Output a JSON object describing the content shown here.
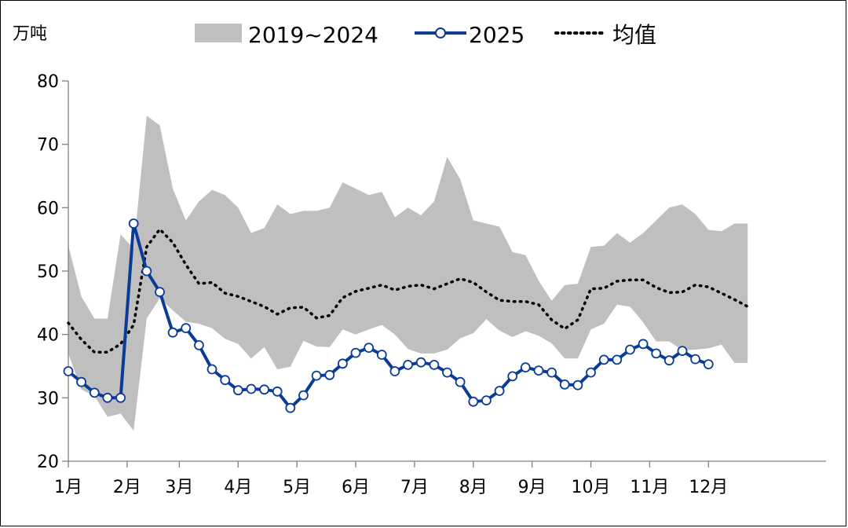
{
  "chart_data": {
    "type": "line",
    "unit": "万吨",
    "ylim": [
      20,
      80
    ],
    "yticks": [
      20,
      30,
      40,
      50,
      60,
      70,
      80
    ],
    "xlim": [
      0,
      58
    ],
    "month_ticks": [
      {
        "label": "1月",
        "x": 0
      },
      {
        "label": "2月",
        "x": 4.5
      },
      {
        "label": "3月",
        "x": 8.5
      },
      {
        "label": "4月",
        "x": 13
      },
      {
        "label": "5月",
        "x": 17.5
      },
      {
        "label": "6月",
        "x": 22
      },
      {
        "label": "7月",
        "x": 26.5
      },
      {
        "label": "8月",
        "x": 31
      },
      {
        "label": "9月",
        "x": 35.5
      },
      {
        "label": "10月",
        "x": 40
      },
      {
        "label": "11月",
        "x": 44.5
      },
      {
        "label": "12月",
        "x": 49
      }
    ],
    "legend": [
      {
        "name": "2019~2024",
        "kind": "band",
        "color": "#bfbfbf"
      },
      {
        "name": "2025",
        "kind": "line-marker",
        "color": "#0a3b96"
      },
      {
        "name": "均值",
        "kind": "dotted",
        "color": "#000000"
      }
    ],
    "series": [
      {
        "name": "2019~2024",
        "type": "range",
        "color": "#bfbfbf",
        "x": [
          0,
          1,
          2,
          3,
          4,
          5,
          6,
          7,
          8,
          9,
          10,
          11,
          12,
          13,
          14,
          15,
          16,
          17,
          18,
          19,
          20,
          21,
          22,
          23,
          24,
          25,
          26,
          27,
          28,
          29,
          30,
          31,
          32,
          33,
          34,
          35,
          36,
          37,
          38,
          39,
          40,
          41,
          42,
          43,
          44,
          45,
          46,
          47,
          48,
          49,
          50,
          51,
          52
        ],
        "upper": [
          54,
          46,
          42.5,
          42.5,
          55.8,
          53.5,
          74.5,
          73,
          63,
          58,
          61,
          62.8,
          62,
          60,
          56,
          56.8,
          60.5,
          59,
          59.5,
          59.5,
          60,
          64,
          63,
          62,
          62.5,
          58.5,
          60,
          58.8,
          61,
          68,
          64.5,
          58,
          57.5,
          57,
          53,
          52.5,
          48.5,
          45.3,
          47.8,
          48,
          53.8,
          54,
          56,
          54.5,
          56,
          58,
          60,
          60.5,
          59,
          56.5,
          56.3,
          57.5,
          57.5
        ],
        "lower": [
          37,
          31.3,
          30.3,
          27,
          27.5,
          24.8,
          42.5,
          45.7,
          43.8,
          42,
          41.7,
          41,
          39.3,
          38.5,
          36.2,
          38,
          34.5,
          34.9,
          39,
          38.1,
          38,
          40.8,
          40,
          40.8,
          41.5,
          40,
          37.7,
          37,
          37,
          37.6,
          39.4,
          40.2,
          42.4,
          40.6,
          39.6,
          40.5,
          39.8,
          38.6,
          36.2,
          36.2,
          40.8,
          41.7,
          44.7,
          44.4,
          41.9,
          38.9,
          38.9,
          37.5,
          37.6,
          37.8,
          38.4,
          35.5,
          35.5
        ]
      },
      {
        "name": "2025",
        "type": "line-marker",
        "color": "#0a3b96",
        "x": [
          0,
          1,
          2,
          3,
          4,
          5,
          6,
          7,
          8,
          9,
          10,
          11,
          12,
          13,
          14,
          15,
          16,
          17,
          18,
          19,
          20,
          21,
          22,
          23,
          24,
          25,
          26,
          27,
          28,
          29,
          30,
          31,
          32,
          33,
          34,
          35,
          36,
          37,
          38,
          39,
          40,
          41,
          42,
          43,
          44,
          45,
          46,
          47,
          48,
          49
        ],
        "values": [
          34.2,
          32.5,
          30.8,
          30,
          30,
          57.5,
          50,
          46.7,
          40.3,
          41,
          38.3,
          34.5,
          32.8,
          31.2,
          31.4,
          31.3,
          31,
          28.4,
          30.4,
          33.5,
          33.6,
          35.4,
          37.1,
          37.9,
          36.8,
          34.2,
          35.2,
          35.6,
          35.2,
          34,
          32.5,
          29.4,
          29.6,
          31.1,
          33.4,
          34.8,
          34.3,
          34,
          32.1,
          32,
          34,
          36,
          36,
          37.6,
          38.5,
          37,
          35.9,
          37.4,
          36.1,
          35.3
        ]
      },
      {
        "name": "均值",
        "type": "dotted",
        "color": "#000000",
        "x": [
          0,
          1,
          2,
          3,
          4,
          5,
          6,
          7,
          8,
          9,
          10,
          11,
          12,
          13,
          14,
          15,
          16,
          17,
          18,
          19,
          20,
          21,
          22,
          23,
          24,
          25,
          26,
          27,
          28,
          29,
          30,
          31,
          32,
          33,
          34,
          35,
          36,
          37,
          38,
          39,
          40,
          41,
          42,
          43,
          44,
          45,
          46,
          47,
          48,
          49,
          50,
          51,
          52
        ],
        "values": [
          41.8,
          39.2,
          37.2,
          37.2,
          38.5,
          41.5,
          53.8,
          56.6,
          54.5,
          51,
          48,
          48.2,
          46.5,
          46,
          45.2,
          44.4,
          43.2,
          44.2,
          44.3,
          42.6,
          43,
          45.8,
          46.8,
          47.3,
          47.8,
          47,
          47.6,
          47.8,
          47.2,
          48,
          48.8,
          48.2,
          46.7,
          45.4,
          45.2,
          45.2,
          44.7,
          42.3,
          40.9,
          42.3,
          47.2,
          47.3,
          48.4,
          48.6,
          48.6,
          47.4,
          46.6,
          46.7,
          47.8,
          47.5,
          46.5,
          45.5,
          44.4
        ]
      }
    ]
  }
}
